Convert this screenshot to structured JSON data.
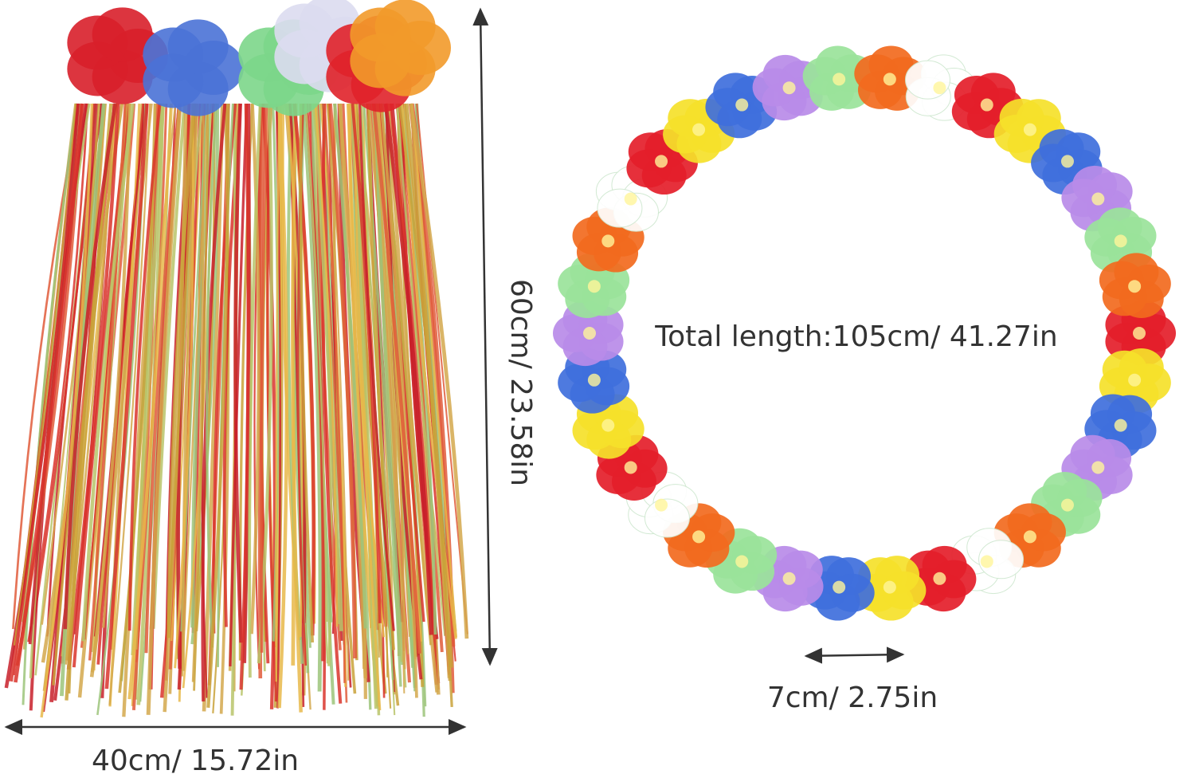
{
  "labels": {
    "skirt_width": "40cm/ 15.72in",
    "skirt_length": "60cm/ 23.58in",
    "lei_length": "Total length:105cm/ 41.27in",
    "flower_width": "7cm/ 2.75in"
  }
}
